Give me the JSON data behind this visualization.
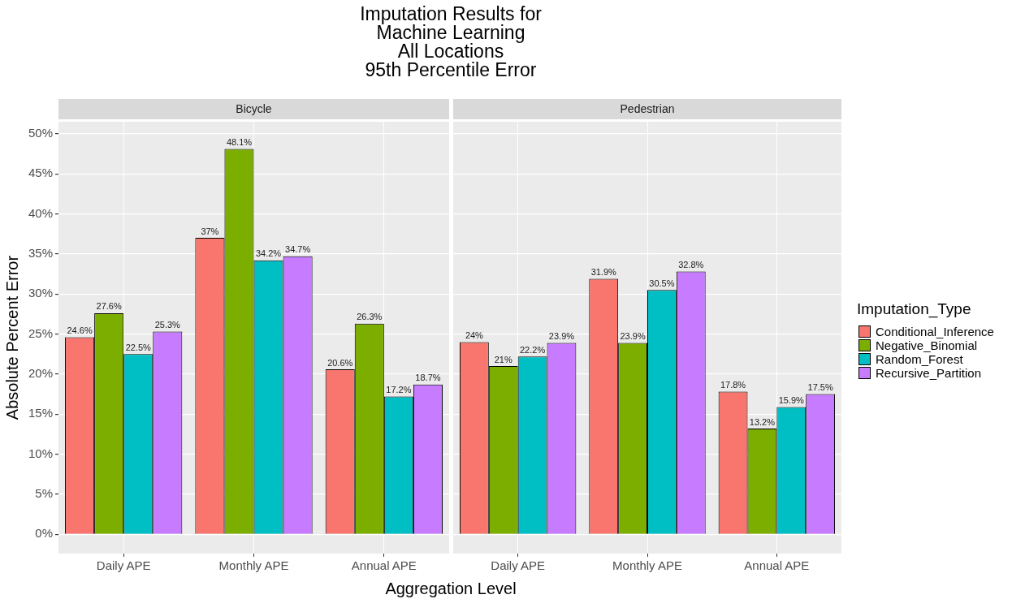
{
  "chart_data": [
    {
      "type": "bar",
      "title": "Imputation Results for\nMachine Learning\nAll Locations\n95th Percentile Error",
      "subtitle": "Bicycle",
      "xlabel": "Aggregation Level",
      "ylabel": "Absolute Percent Error",
      "categories": [
        "Daily APE",
        "Monthly APE",
        "Annual APE"
      ],
      "series": [
        {
          "name": "Conditional_Inference",
          "color": "#f8766d",
          "values": [
            24.6,
            37,
            20.6
          ],
          "value_labels": [
            "24.6%",
            "37%",
            "20.6%"
          ]
        },
        {
          "name": "Negative_Binomial",
          "color": "#7cae00",
          "values": [
            27.6,
            48.1,
            26.3
          ],
          "value_labels": [
            "27.6%",
            "48.1%",
            "26.3%"
          ]
        },
        {
          "name": "Random_Forest",
          "color": "#00bfc4",
          "values": [
            22.5,
            34.2,
            17.2
          ],
          "value_labels": [
            "22.5%",
            "34.2%",
            "17.2%"
          ]
        },
        {
          "name": "Recursive_Partition",
          "color": "#c77cff",
          "values": [
            25.3,
            34.7,
            18.7
          ],
          "value_labels": [
            "25.3%",
            "34.7%",
            "18.7%"
          ]
        }
      ],
      "ylim": [
        -2.4,
        51.5
      ],
      "yticks": [
        {
          "value": 0,
          "label": "0%"
        },
        {
          "value": 5,
          "label": "5%"
        },
        {
          "value": 10,
          "label": "10%"
        },
        {
          "value": 15,
          "label": "15%"
        },
        {
          "value": 20,
          "label": "20%"
        },
        {
          "value": 25,
          "label": "25%"
        },
        {
          "value": 30,
          "label": "30%"
        },
        {
          "value": 35,
          "label": "35%"
        },
        {
          "value": 40,
          "label": "40%"
        },
        {
          "value": 45,
          "label": "45%"
        },
        {
          "value": 50,
          "label": "50%"
        }
      ],
      "grid": true,
      "legend": "right",
      "legend_title": "Imputation_Type"
    },
    {
      "type": "bar",
      "subtitle": "Pedestrian",
      "categories": [
        "Daily APE",
        "Monthly APE",
        "Annual APE"
      ],
      "series": [
        {
          "color": "#f8766d",
          "values": [
            24,
            31.9,
            17.8
          ],
          "value_labels": [
            "24%",
            "31.9%",
            "17.8%"
          ]
        },
        {
          "color": "#7cae00",
          "values": [
            21,
            23.9,
            13.2
          ],
          "value_labels": [
            "21%",
            "23.9%",
            "13.2%"
          ]
        },
        {
          "color": "#00bfc4",
          "values": [
            22.2,
            30.5,
            15.9
          ],
          "value_labels": [
            "22.2%",
            "30.5%",
            "15.9%"
          ]
        },
        {
          "color": "#c77cff",
          "values": [
            23.9,
            32.8,
            17.5
          ],
          "value_labels": [
            "23.9%",
            "32.8%",
            "17.5%"
          ]
        }
      ],
      "ylim": [
        -2.4,
        51.5
      ],
      "yticks": [
        0,
        5,
        10,
        15,
        20,
        25,
        30,
        35,
        40,
        45,
        50
      ],
      "grid": true,
      "tick_labels": "x"
    }
  ]
}
